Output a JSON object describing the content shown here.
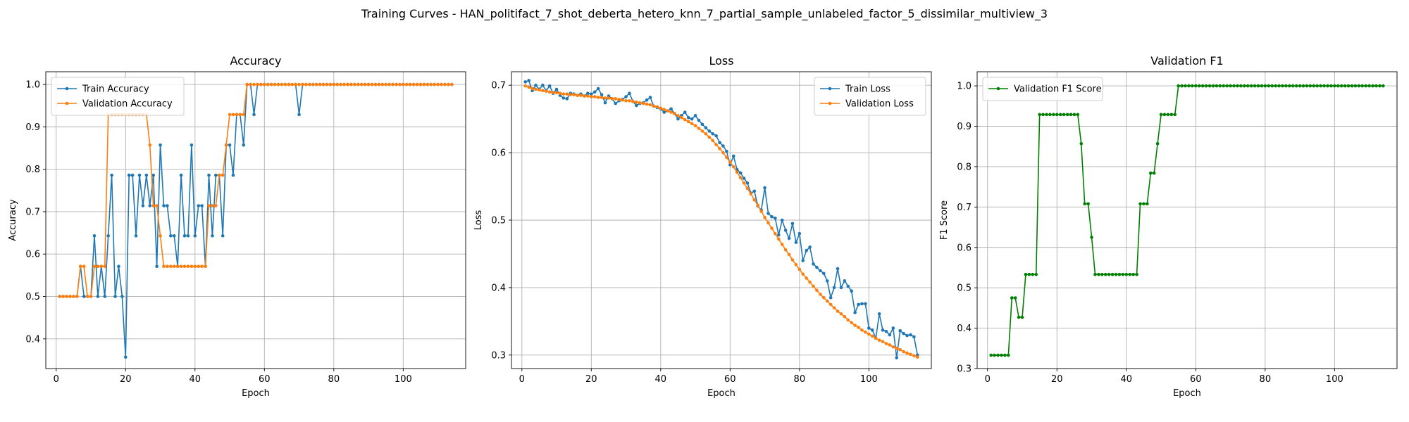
{
  "figure_title": "Training Curves - HAN_politifact_7_shot_deberta_hetero_knn_7_partial_sample_unlabeled_factor_5_dissimilar_multiview_3",
  "colors": {
    "train": "#1f77b4",
    "validation": "#ff7f0e",
    "f1": "#008000",
    "grid": "#b0b0b0"
  },
  "chart_data": [
    {
      "type": "line",
      "title": "Accuracy",
      "xlabel": "Epoch",
      "ylabel": "Accuracy",
      "xlim": [
        -3,
        118
      ],
      "ylim": [
        0.33,
        1.03
      ],
      "xticks": [
        0,
        20,
        40,
        60,
        80,
        100
      ],
      "yticks": [
        0.4,
        0.5,
        0.6,
        0.7,
        0.8,
        0.9,
        1.0
      ],
      "ytick_labels": [
        "0.4",
        "0.5",
        "0.6",
        "0.7",
        "0.8",
        "0.9",
        "1.0"
      ],
      "grid": true,
      "legend_loc": "upper-left",
      "x": [
        1,
        2,
        3,
        4,
        5,
        6,
        7,
        8,
        9,
        10,
        11,
        12,
        13,
        14,
        15,
        16,
        17,
        18,
        19,
        20,
        21,
        22,
        23,
        24,
        25,
        26,
        27,
        28,
        29,
        30,
        31,
        32,
        33,
        34,
        35,
        36,
        37,
        38,
        39,
        40,
        41,
        42,
        43,
        44,
        45,
        46,
        47,
        48,
        49,
        50,
        51,
        52,
        53,
        54,
        55,
        56,
        57,
        58,
        59,
        60,
        61,
        62,
        63,
        64,
        65,
        66,
        67,
        68,
        69,
        70,
        71,
        72,
        73,
        74,
        75,
        76,
        77,
        78,
        79,
        80,
        81,
        82,
        83,
        84,
        85,
        86,
        87,
        88,
        89,
        90,
        91,
        92,
        93,
        94,
        95,
        96,
        97,
        98,
        99,
        100,
        101,
        102,
        103,
        104,
        105,
        106,
        107,
        108,
        109,
        110,
        111,
        112,
        113,
        114
      ],
      "series": [
        {
          "name": "Train Accuracy",
          "color": "#1f77b4",
          "values": [
            0.5,
            0.5,
            0.5,
            0.5,
            0.5,
            0.5,
            0.571,
            0.5,
            0.5,
            0.5,
            0.643,
            0.5,
            0.571,
            0.5,
            0.643,
            0.786,
            0.5,
            0.571,
            0.5,
            0.357,
            0.786,
            0.786,
            0.643,
            0.786,
            0.714,
            0.786,
            0.714,
            0.786,
            0.571,
            0.857,
            0.714,
            0.714,
            0.643,
            0.643,
            0.571,
            0.786,
            0.643,
            0.643,
            0.857,
            0.643,
            0.714,
            0.714,
            0.571,
            0.786,
            0.643,
            0.786,
            0.786,
            0.643,
            0.857,
            0.857,
            0.786,
            0.929,
            0.929,
            0.857,
            1.0,
            1.0,
            0.929,
            1.0,
            1.0,
            1.0,
            1.0,
            1.0,
            1.0,
            1.0,
            1.0,
            1.0,
            1.0,
            1.0,
            1.0,
            0.929,
            1.0,
            1.0,
            1.0,
            1.0,
            1.0,
            1.0,
            1.0,
            1.0,
            1.0,
            1.0,
            1.0,
            1.0,
            1.0,
            1.0,
            1.0,
            1.0,
            1.0,
            1.0,
            1.0,
            1.0,
            1.0,
            1.0,
            1.0,
            1.0,
            1.0,
            1.0,
            1.0,
            1.0,
            1.0,
            1.0,
            1.0,
            1.0,
            1.0,
            1.0,
            1.0,
            1.0,
            1.0,
            1.0,
            1.0,
            1.0,
            1.0,
            1.0,
            1.0,
            1.0
          ]
        },
        {
          "name": "Validation Accuracy",
          "color": "#ff7f0e",
          "values": [
            0.5,
            0.5,
            0.5,
            0.5,
            0.5,
            0.5,
            0.571,
            0.571,
            0.5,
            0.5,
            0.571,
            0.571,
            0.571,
            0.571,
            0.929,
            0.929,
            0.929,
            0.929,
            0.929,
            0.929,
            0.929,
            0.929,
            0.929,
            0.929,
            0.929,
            0.929,
            0.857,
            0.714,
            0.714,
            0.643,
            0.571,
            0.571,
            0.571,
            0.571,
            0.571,
            0.571,
            0.571,
            0.571,
            0.571,
            0.571,
            0.571,
            0.571,
            0.571,
            0.714,
            0.714,
            0.714,
            0.786,
            0.786,
            0.857,
            0.929,
            0.929,
            0.929,
            0.929,
            0.929,
            1.0,
            1.0,
            1.0,
            1.0,
            1.0,
            1.0,
            1.0,
            1.0,
            1.0,
            1.0,
            1.0,
            1.0,
            1.0,
            1.0,
            1.0,
            1.0,
            1.0,
            1.0,
            1.0,
            1.0,
            1.0,
            1.0,
            1.0,
            1.0,
            1.0,
            1.0,
            1.0,
            1.0,
            1.0,
            1.0,
            1.0,
            1.0,
            1.0,
            1.0,
            1.0,
            1.0,
            1.0,
            1.0,
            1.0,
            1.0,
            1.0,
            1.0,
            1.0,
            1.0,
            1.0,
            1.0,
            1.0,
            1.0,
            1.0,
            1.0,
            1.0,
            1.0,
            1.0,
            1.0,
            1.0,
            1.0,
            1.0,
            1.0,
            1.0,
            1.0
          ]
        }
      ]
    },
    {
      "type": "line",
      "title": "Loss",
      "xlabel": "Epoch",
      "ylabel": "Loss",
      "xlim": [
        -3,
        118
      ],
      "ylim": [
        0.28,
        0.72
      ],
      "xticks": [
        0,
        20,
        40,
        60,
        80,
        100
      ],
      "yticks": [
        0.3,
        0.4,
        0.5,
        0.6,
        0.7
      ],
      "ytick_labels": [
        "0.3",
        "0.4",
        "0.5",
        "0.6",
        "0.7"
      ],
      "grid": true,
      "legend_loc": "upper-right",
      "x": [
        1,
        2,
        3,
        4,
        5,
        6,
        7,
        8,
        9,
        10,
        11,
        12,
        13,
        14,
        15,
        16,
        17,
        18,
        19,
        20,
        21,
        22,
        23,
        24,
        25,
        26,
        27,
        28,
        29,
        30,
        31,
        32,
        33,
        34,
        35,
        36,
        37,
        38,
        39,
        40,
        41,
        42,
        43,
        44,
        45,
        46,
        47,
        48,
        49,
        50,
        51,
        52,
        53,
        54,
        55,
        56,
        57,
        58,
        59,
        60,
        61,
        62,
        63,
        64,
        65,
        66,
        67,
        68,
        69,
        70,
        71,
        72,
        73,
        74,
        75,
        76,
        77,
        78,
        79,
        80,
        81,
        82,
        83,
        84,
        85,
        86,
        87,
        88,
        89,
        90,
        91,
        92,
        93,
        94,
        95,
        96,
        97,
        98,
        99,
        100,
        101,
        102,
        103,
        104,
        105,
        106,
        107,
        108,
        109,
        110,
        111,
        112,
        113,
        114
      ],
      "series": [
        {
          "name": "Train Loss",
          "color": "#1f77b4",
          "values": [
            0.705,
            0.707,
            0.692,
            0.7,
            0.694,
            0.7,
            0.692,
            0.699,
            0.688,
            0.694,
            0.685,
            0.681,
            0.68,
            0.688,
            0.687,
            0.685,
            0.687,
            0.684,
            0.688,
            0.687,
            0.69,
            0.695,
            0.686,
            0.674,
            0.684,
            0.68,
            0.673,
            0.677,
            0.679,
            0.683,
            0.688,
            0.676,
            0.67,
            0.673,
            0.674,
            0.678,
            0.682,
            0.669,
            0.667,
            0.665,
            0.66,
            0.662,
            0.665,
            0.658,
            0.65,
            0.655,
            0.66,
            0.652,
            0.65,
            0.655,
            0.648,
            0.642,
            0.637,
            0.632,
            0.628,
            0.625,
            0.615,
            0.61,
            0.602,
            0.582,
            0.595,
            0.575,
            0.57,
            0.562,
            0.555,
            0.54,
            0.543,
            0.521,
            0.515,
            0.548,
            0.51,
            0.505,
            0.503,
            0.478,
            0.5,
            0.485,
            0.473,
            0.495,
            0.467,
            0.48,
            0.44,
            0.455,
            0.46,
            0.435,
            0.43,
            0.425,
            0.421,
            0.41,
            0.385,
            0.4,
            0.428,
            0.4,
            0.41,
            0.402,
            0.395,
            0.363,
            0.375,
            0.376,
            0.376,
            0.34,
            0.337,
            0.325,
            0.361,
            0.337,
            0.335,
            0.33,
            0.34,
            0.296,
            0.336,
            0.332,
            0.329,
            0.33,
            0.327,
            0.3
          ]
        },
        {
          "name": "Validation Loss",
          "color": "#ff7f0e",
          "values": [
            0.699,
            0.697,
            0.695,
            0.694,
            0.693,
            0.692,
            0.691,
            0.69,
            0.689,
            0.689,
            0.688,
            0.687,
            0.687,
            0.686,
            0.686,
            0.685,
            0.685,
            0.684,
            0.684,
            0.683,
            0.683,
            0.682,
            0.682,
            0.681,
            0.681,
            0.68,
            0.68,
            0.679,
            0.678,
            0.677,
            0.677,
            0.676,
            0.675,
            0.674,
            0.673,
            0.672,
            0.671,
            0.669,
            0.668,
            0.666,
            0.664,
            0.662,
            0.66,
            0.658,
            0.655,
            0.652,
            0.649,
            0.646,
            0.643,
            0.64,
            0.636,
            0.632,
            0.628,
            0.623,
            0.618,
            0.612,
            0.606,
            0.6,
            0.593,
            0.586,
            0.579,
            0.571,
            0.563,
            0.555,
            0.547,
            0.539,
            0.53,
            0.522,
            0.513,
            0.504,
            0.496,
            0.488,
            0.48,
            0.472,
            0.464,
            0.456,
            0.449,
            0.441,
            0.434,
            0.427,
            0.42,
            0.414,
            0.408,
            0.402,
            0.396,
            0.39,
            0.385,
            0.38,
            0.375,
            0.37,
            0.365,
            0.361,
            0.357,
            0.352,
            0.348,
            0.344,
            0.341,
            0.337,
            0.334,
            0.331,
            0.328,
            0.325,
            0.322,
            0.32,
            0.317,
            0.315,
            0.312,
            0.31,
            0.308,
            0.305,
            0.303,
            0.301,
            0.299,
            0.297
          ]
        }
      ]
    },
    {
      "type": "line",
      "title": "Validation F1",
      "xlabel": "Epoch",
      "ylabel": "F1 Score",
      "xlim": [
        -3,
        118
      ],
      "ylim": [
        0.3,
        1.035
      ],
      "xticks": [
        0,
        20,
        40,
        60,
        80,
        100
      ],
      "yticks": [
        0.3,
        0.4,
        0.5,
        0.6,
        0.7,
        0.8,
        0.9,
        1.0
      ],
      "ytick_labels": [
        "0.3",
        "0.4",
        "0.5",
        "0.6",
        "0.7",
        "0.8",
        "0.9",
        "1.0"
      ],
      "grid": true,
      "legend_loc": "upper-left",
      "x": [
        1,
        2,
        3,
        4,
        5,
        6,
        7,
        8,
        9,
        10,
        11,
        12,
        13,
        14,
        15,
        16,
        17,
        18,
        19,
        20,
        21,
        22,
        23,
        24,
        25,
        26,
        27,
        28,
        29,
        30,
        31,
        32,
        33,
        34,
        35,
        36,
        37,
        38,
        39,
        40,
        41,
        42,
        43,
        44,
        45,
        46,
        47,
        48,
        49,
        50,
        51,
        52,
        53,
        54,
        55,
        56,
        57,
        58,
        59,
        60,
        61,
        62,
        63,
        64,
        65,
        66,
        67,
        68,
        69,
        70,
        71,
        72,
        73,
        74,
        75,
        76,
        77,
        78,
        79,
        80,
        81,
        82,
        83,
        84,
        85,
        86,
        87,
        88,
        89,
        90,
        91,
        92,
        93,
        94,
        95,
        96,
        97,
        98,
        99,
        100,
        101,
        102,
        103,
        104,
        105,
        106,
        107,
        108,
        109,
        110,
        111,
        112,
        113,
        114
      ],
      "series": [
        {
          "name": "Validation F1 Score",
          "color": "#008000",
          "values": [
            0.333,
            0.333,
            0.333,
            0.333,
            0.333,
            0.333,
            0.475,
            0.475,
            0.427,
            0.427,
            0.533,
            0.533,
            0.533,
            0.533,
            0.929,
            0.929,
            0.929,
            0.929,
            0.929,
            0.929,
            0.929,
            0.929,
            0.929,
            0.929,
            0.929,
            0.929,
            0.857,
            0.708,
            0.708,
            0.625,
            0.533,
            0.533,
            0.533,
            0.533,
            0.533,
            0.533,
            0.533,
            0.533,
            0.533,
            0.533,
            0.533,
            0.533,
            0.533,
            0.708,
            0.708,
            0.708,
            0.784,
            0.784,
            0.857,
            0.929,
            0.929,
            0.929,
            0.929,
            0.929,
            1.0,
            1.0,
            1.0,
            1.0,
            1.0,
            1.0,
            1.0,
            1.0,
            1.0,
            1.0,
            1.0,
            1.0,
            1.0,
            1.0,
            1.0,
            1.0,
            1.0,
            1.0,
            1.0,
            1.0,
            1.0,
            1.0,
            1.0,
            1.0,
            1.0,
            1.0,
            1.0,
            1.0,
            1.0,
            1.0,
            1.0,
            1.0,
            1.0,
            1.0,
            1.0,
            1.0,
            1.0,
            1.0,
            1.0,
            1.0,
            1.0,
            1.0,
            1.0,
            1.0,
            1.0,
            1.0,
            1.0,
            1.0,
            1.0,
            1.0,
            1.0,
            1.0,
            1.0,
            1.0,
            1.0,
            1.0,
            1.0,
            1.0,
            1.0,
            1.0
          ]
        }
      ]
    }
  ]
}
